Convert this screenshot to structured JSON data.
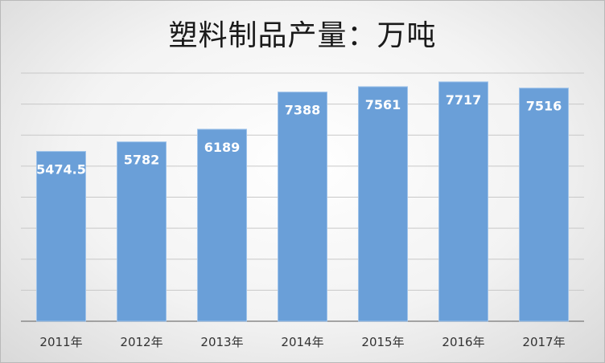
{
  "chart_data": {
    "type": "bar",
    "title": "塑料制品产量：万吨",
    "categories": [
      "2011年",
      "2012年",
      "2013年",
      "2014年",
      "2015年",
      "2016年",
      "2017年"
    ],
    "values": [
      5474.5,
      5782,
      6189,
      7388,
      7561,
      7717,
      7516
    ],
    "value_labels": [
      "5474.5",
      "5782",
      "6189",
      "7388",
      "7561",
      "7717",
      "7516"
    ],
    "xlabel": "",
    "ylabel": "",
    "ylim": [
      0,
      8000
    ],
    "grid": true,
    "legend": "none",
    "colors": {
      "bar": "#6a9fd8",
      "bar_edge": "#9fc3ea",
      "grid": "#c8c8c8",
      "axis": "#8a8a8a"
    }
  }
}
